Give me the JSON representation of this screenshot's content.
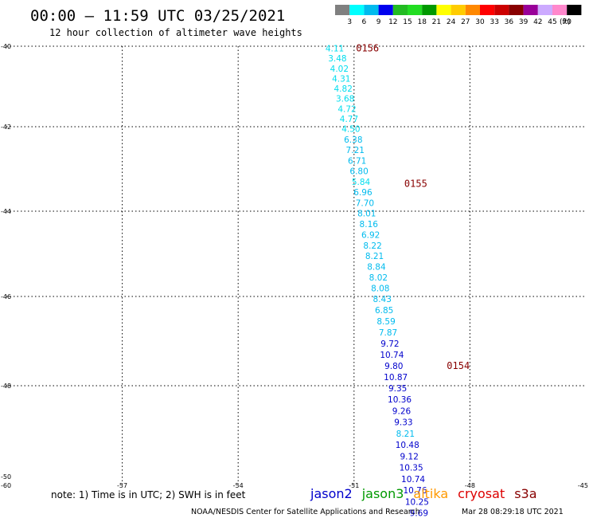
{
  "header": {
    "title": "00:00 – 11:59 UTC 03/25/2021",
    "subtitle": "12 hour collection of altimeter wave heights"
  },
  "colorbar": {
    "labels": [
      "3",
      "6",
      "9",
      "12",
      "15",
      "18",
      "21",
      "24",
      "27",
      "30",
      "33",
      "36",
      "39",
      "42",
      "45",
      "70"
    ],
    "unit": "(ft)",
    "colors": [
      "#808080",
      "#00ffff",
      "#00bbee",
      "#0000ee",
      "#22bb22",
      "#22dd22",
      "#009900",
      "#ffff00",
      "#ffcc00",
      "#ff8800",
      "#ff0000",
      "#cc0000",
      "#880000",
      "#990099",
      "#ccaaff",
      "#ff88cc",
      "#000000"
    ]
  },
  "footer": {
    "note": "note: 1) Time is in UTC; 2) SWH is in feet",
    "credit": "NOAA/NESDIS Center for Satellite Applications and Research",
    "timestamp": "Mar 28 08:29:18 UTC 2021"
  },
  "legend": [
    {
      "label": "jason2",
      "color": "#0000cc"
    },
    {
      "label": "jason3",
      "color": "#009900"
    },
    {
      "label": "altika",
      "color": "#ff9900"
    },
    {
      "label": "cryosat",
      "color": "#dd0000"
    },
    {
      "label": "s3a",
      "color": "#880000"
    }
  ],
  "chart_data": {
    "type": "scatter",
    "xlim": [
      -60,
      -45
    ],
    "ylim": [
      -50,
      -40
    ],
    "x_ticks": [
      "-60",
      "-57",
      "-54",
      "-51",
      "-48",
      "-45"
    ],
    "y_ticks": [
      "-40",
      "-42",
      "-44",
      "-46",
      "-48",
      "-50"
    ],
    "grid": true,
    "time_labels": [
      {
        "text": "0156",
        "lon": -50.95,
        "lat": -40.05
      },
      {
        "text": "0155",
        "lon": -49.7,
        "lat": -43.35
      },
      {
        "text": "0154",
        "lon": -48.6,
        "lat": -47.55
      }
    ],
    "points": [
      {
        "lon": -51.5,
        "lat": -40.05,
        "swh": "4.11",
        "color": "#00ddee"
      },
      {
        "lon": -51.43,
        "lat": -40.3,
        "swh": "3.48",
        "color": "#00ddee"
      },
      {
        "lon": -51.38,
        "lat": -40.55,
        "swh": "4.02",
        "color": "#00ddee"
      },
      {
        "lon": -51.33,
        "lat": -40.8,
        "swh": "4.31",
        "color": "#00ddee"
      },
      {
        "lon": -51.28,
        "lat": -41.05,
        "swh": "4.82",
        "color": "#00ddee"
      },
      {
        "lon": -51.23,
        "lat": -41.3,
        "swh": "3.68",
        "color": "#00ddee"
      },
      {
        "lon": -51.18,
        "lat": -41.55,
        "swh": "4.72",
        "color": "#00ddee"
      },
      {
        "lon": -51.13,
        "lat": -41.8,
        "swh": "4.77",
        "color": "#00ddee"
      },
      {
        "lon": -51.08,
        "lat": -42.05,
        "swh": "4.50",
        "color": "#00ddee"
      },
      {
        "lon": -51.02,
        "lat": -42.3,
        "swh": "6.38",
        "color": "#00bbee"
      },
      {
        "lon": -50.97,
        "lat": -42.55,
        "swh": "7.21",
        "color": "#00bbee"
      },
      {
        "lon": -50.92,
        "lat": -42.8,
        "swh": "6.71",
        "color": "#00bbee"
      },
      {
        "lon": -50.87,
        "lat": -43.05,
        "swh": "6.80",
        "color": "#00bbee"
      },
      {
        "lon": -50.82,
        "lat": -43.3,
        "swh": "5.84",
        "color": "#00ddee"
      },
      {
        "lon": -50.77,
        "lat": -43.55,
        "swh": "6.96",
        "color": "#00bbee"
      },
      {
        "lon": -50.72,
        "lat": -43.8,
        "swh": "7.70",
        "color": "#00bbee"
      },
      {
        "lon": -50.67,
        "lat": -44.05,
        "swh": "8.01",
        "color": "#00bbee"
      },
      {
        "lon": -50.62,
        "lat": -44.3,
        "swh": "8.16",
        "color": "#00bbee"
      },
      {
        "lon": -50.57,
        "lat": -44.55,
        "swh": "6.92",
        "color": "#00bbee"
      },
      {
        "lon": -50.52,
        "lat": -44.8,
        "swh": "8.22",
        "color": "#00bbee"
      },
      {
        "lon": -50.47,
        "lat": -45.05,
        "swh": "8.21",
        "color": "#00bbee"
      },
      {
        "lon": -50.42,
        "lat": -45.3,
        "swh": "8.84",
        "color": "#00bbee"
      },
      {
        "lon": -50.37,
        "lat": -45.55,
        "swh": "8.02",
        "color": "#00bbee"
      },
      {
        "lon": -50.32,
        "lat": -45.8,
        "swh": "8.08",
        "color": "#00bbee"
      },
      {
        "lon": -50.27,
        "lat": -46.05,
        "swh": "8.43",
        "color": "#00bbee"
      },
      {
        "lon": -50.22,
        "lat": -46.3,
        "swh": "6.85",
        "color": "#00bbee"
      },
      {
        "lon": -50.17,
        "lat": -46.55,
        "swh": "8.59",
        "color": "#00bbee"
      },
      {
        "lon": -50.12,
        "lat": -46.8,
        "swh": "7.87",
        "color": "#00bbee"
      },
      {
        "lon": -50.07,
        "lat": -47.05,
        "swh": "9.72",
        "color": "#0000cc"
      },
      {
        "lon": -50.02,
        "lat": -47.3,
        "swh": "10.74",
        "color": "#0000cc"
      },
      {
        "lon": -49.97,
        "lat": -47.55,
        "swh": "9.80",
        "color": "#0000cc"
      },
      {
        "lon": -49.92,
        "lat": -47.8,
        "swh": "10.87",
        "color": "#0000cc"
      },
      {
        "lon": -49.87,
        "lat": -48.05,
        "swh": "9.35",
        "color": "#0000cc"
      },
      {
        "lon": -49.82,
        "lat": -48.3,
        "swh": "10.36",
        "color": "#0000cc"
      },
      {
        "lon": -49.77,
        "lat": -48.55,
        "swh": "9.26",
        "color": "#0000cc"
      },
      {
        "lon": -49.72,
        "lat": -48.8,
        "swh": "9.33",
        "color": "#0000cc"
      },
      {
        "lon": -49.67,
        "lat": -49.05,
        "swh": "8.21",
        "color": "#00bbee"
      },
      {
        "lon": -49.62,
        "lat": -49.3,
        "swh": "10.48",
        "color": "#0000cc"
      },
      {
        "lon": -49.57,
        "lat": -49.55,
        "swh": "9.12",
        "color": "#0000cc"
      },
      {
        "lon": -49.52,
        "lat": -49.8,
        "swh": "10.35",
        "color": "#0000cc"
      },
      {
        "lon": -49.47,
        "lat": -50.05,
        "swh": "10.74",
        "color": "#0000cc"
      },
      {
        "lon": -49.42,
        "lat": -50.3,
        "swh": "10.76",
        "color": "#0000cc"
      },
      {
        "lon": -49.37,
        "lat": -50.55,
        "swh": "10.25",
        "color": "#0000cc"
      },
      {
        "lon": -49.32,
        "lat": -50.8,
        "swh": "9.69",
        "color": "#0000cc"
      }
    ]
  }
}
